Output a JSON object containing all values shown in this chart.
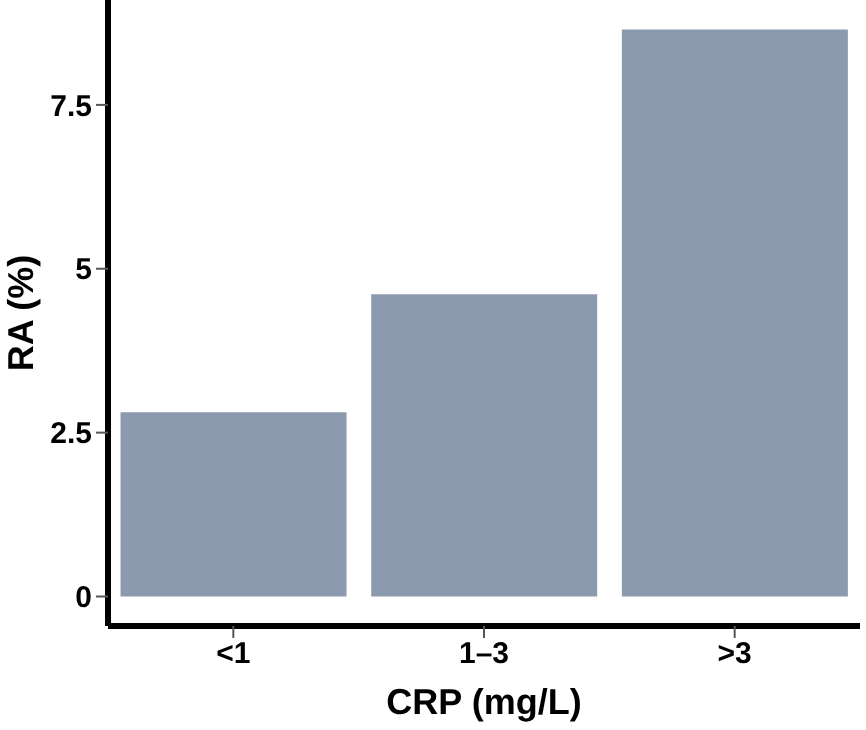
{
  "chart_data": {
    "type": "bar",
    "xlabel": "CRP (mg/L)",
    "ylabel": "RA (%)",
    "categories": [
      "<1",
      "1–3",
      ">3"
    ],
    "values": [
      2.81,
      4.61,
      8.65
    ],
    "color": "#8c9ab0",
    "ylim": [
      -0.45,
      9.1
    ],
    "yticks": [
      0,
      2.5,
      5,
      7.5
    ],
    "grid": false,
    "legend": false
  }
}
